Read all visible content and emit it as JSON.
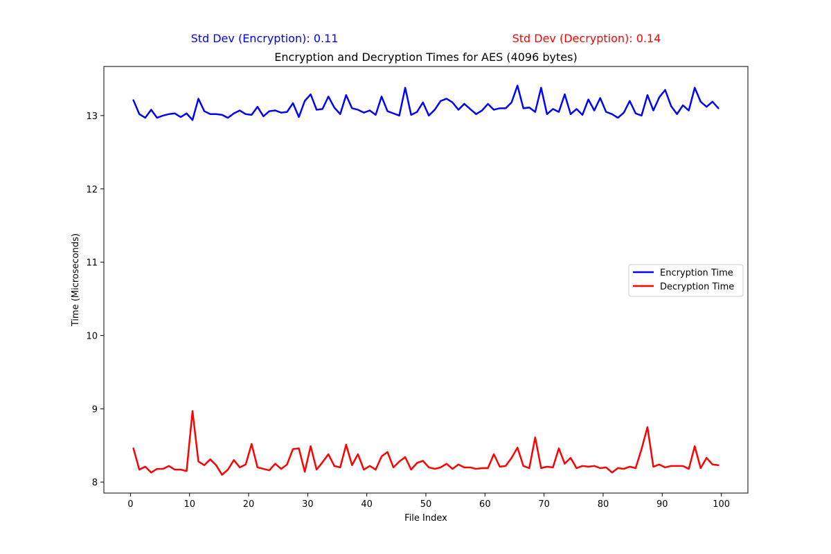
{
  "chart_data": {
    "type": "line",
    "title": "Encryption and Decryption Times for AES (4096 bytes)",
    "xlabel": "File Index",
    "ylabel": "Time (Microseconds)",
    "xlim": [
      -4.5,
      104.5
    ],
    "ylim": [
      7.85,
      13.67
    ],
    "xticks": [
      0,
      10,
      20,
      30,
      40,
      50,
      60,
      70,
      80,
      90,
      100
    ],
    "yticks": [
      8,
      9,
      10,
      11,
      12,
      13
    ],
    "legend_position": "center-right",
    "grid": false,
    "annotations": [
      {
        "text": "Std Dev (Encryption): 0.11",
        "color": "#0000ff"
      },
      {
        "text": "Std Dev (Decryption): 0.14",
        "color": "#ff0000"
      }
    ],
    "x": [
      0.5,
      1.5,
      2.5,
      3.5,
      4.5,
      5.5,
      6.5,
      7.5,
      8.5,
      9.5,
      10.5,
      11.5,
      12.5,
      13.5,
      14.5,
      15.5,
      16.5,
      17.5,
      18.5,
      19.5,
      20.5,
      21.5,
      22.5,
      23.5,
      24.5,
      25.5,
      26.5,
      27.5,
      28.5,
      29.5,
      30.5,
      31.5,
      32.5,
      33.5,
      34.5,
      35.5,
      36.5,
      37.5,
      38.5,
      39.5,
      40.5,
      41.5,
      42.5,
      43.5,
      44.5,
      45.5,
      46.5,
      47.5,
      48.5,
      49.5,
      50.5,
      51.5,
      52.5,
      53.5,
      54.5,
      55.5,
      56.5,
      57.5,
      58.5,
      59.5,
      60.5,
      61.5,
      62.5,
      63.5,
      64.5,
      65.5,
      66.5,
      67.5,
      68.5,
      69.5,
      70.5,
      71.5,
      72.5,
      73.5,
      74.5,
      75.5,
      76.5,
      77.5,
      78.5,
      79.5,
      80.5,
      81.5,
      82.5,
      83.5,
      84.5,
      85.5,
      86.5,
      87.5,
      88.5,
      89.5,
      90.5,
      91.5,
      92.5,
      93.5,
      94.5,
      95.5,
      96.5,
      97.5,
      98.5,
      99.5
    ],
    "series": [
      {
        "name": "Encryption Time",
        "color": "#0000ff",
        "values": [
          13.21,
          13.02,
          12.97,
          13.08,
          12.97,
          13.0,
          13.02,
          13.03,
          12.98,
          13.03,
          12.94,
          13.23,
          13.06,
          13.02,
          13.02,
          13.01,
          12.97,
          13.03,
          13.07,
          13.02,
          13.01,
          13.12,
          12.99,
          13.06,
          13.07,
          13.04,
          13.05,
          13.17,
          12.98,
          13.2,
          13.29,
          13.08,
          13.09,
          13.26,
          13.11,
          13.02,
          13.28,
          13.1,
          13.08,
          13.04,
          13.07,
          13.01,
          13.26,
          13.06,
          13.03,
          13.0,
          13.38,
          13.01,
          13.05,
          13.18,
          13.0,
          13.08,
          13.2,
          13.23,
          13.18,
          13.08,
          13.16,
          13.09,
          13.02,
          13.07,
          13.16,
          13.08,
          13.1,
          13.1,
          13.18,
          13.41,
          13.1,
          13.11,
          13.05,
          13.38,
          13.02,
          13.09,
          13.05,
          13.29,
          13.02,
          13.09,
          13.01,
          13.22,
          13.07,
          13.24,
          13.05,
          13.02,
          12.97,
          13.04,
          13.2,
          13.03,
          13.0,
          13.28,
          13.07,
          13.25,
          13.35,
          13.13,
          13.02,
          13.14,
          13.07,
          13.38,
          13.19,
          13.12,
          13.19,
          13.1
        ]
      },
      {
        "name": "Decryption Time",
        "color": "#ff0000",
        "values": [
          8.46,
          8.17,
          8.21,
          8.13,
          8.18,
          8.18,
          8.22,
          8.17,
          8.17,
          8.15,
          8.97,
          8.28,
          8.23,
          8.31,
          8.23,
          8.1,
          8.17,
          8.3,
          8.2,
          8.24,
          8.52,
          8.2,
          8.18,
          8.16,
          8.25,
          8.18,
          8.24,
          8.45,
          8.46,
          8.14,
          8.49,
          8.17,
          8.27,
          8.38,
          8.22,
          8.2,
          8.51,
          8.23,
          8.38,
          8.17,
          8.22,
          8.17,
          8.35,
          8.41,
          8.2,
          8.28,
          8.34,
          8.17,
          8.26,
          8.29,
          8.2,
          8.18,
          8.2,
          8.25,
          8.18,
          8.24,
          8.2,
          8.2,
          8.18,
          8.19,
          8.19,
          8.38,
          8.21,
          8.22,
          8.33,
          8.47,
          8.22,
          8.19,
          8.61,
          8.19,
          8.21,
          8.2,
          8.46,
          8.25,
          8.33,
          8.19,
          8.22,
          8.21,
          8.22,
          8.19,
          8.2,
          8.13,
          8.19,
          8.18,
          8.21,
          8.19,
          8.45,
          8.75,
          8.21,
          8.24,
          8.2,
          8.22,
          8.22,
          8.22,
          8.18,
          8.49,
          8.19,
          8.33,
          8.24,
          8.23
        ]
      }
    ]
  }
}
